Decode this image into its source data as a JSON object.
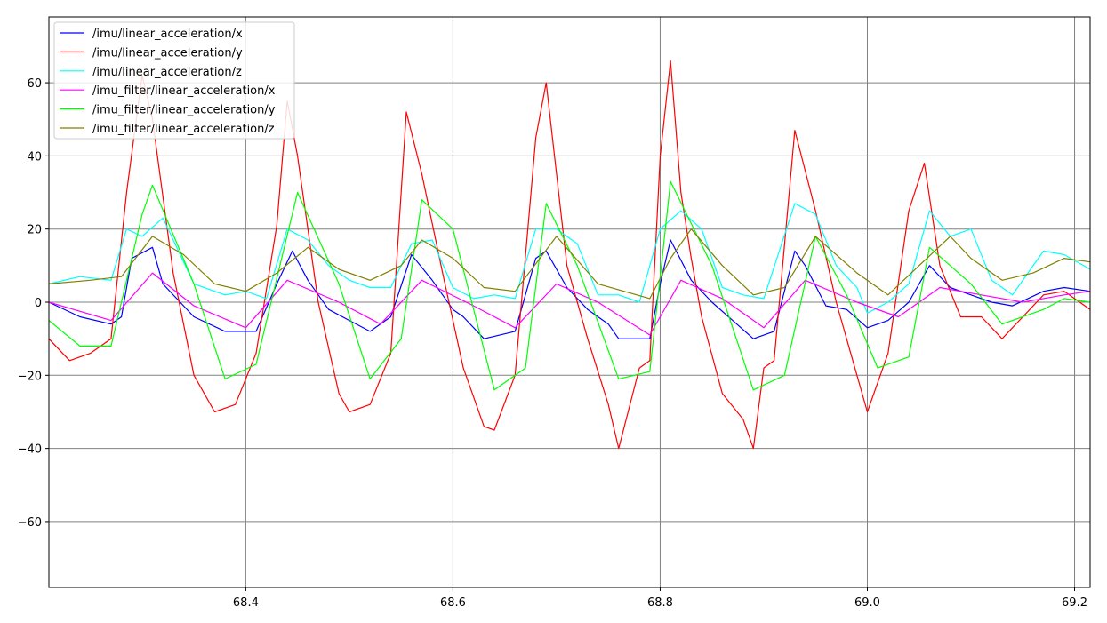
{
  "chart_data": {
    "type": "line",
    "title": "",
    "xlabel": "",
    "ylabel": "",
    "xlim": [
      68.21,
      69.215
    ],
    "ylim": [
      -78,
      78
    ],
    "grid": true,
    "legend_position": "top-left",
    "x_ticks": [
      68.4,
      68.6,
      68.8,
      69.0,
      69.2
    ],
    "x_tick_labels": [
      "68.4",
      "68.6",
      "68.8",
      "69.0",
      "69.2"
    ],
    "y_ticks": [
      60,
      40,
      20,
      0,
      -20,
      -40,
      -60
    ],
    "y_tick_labels": [
      "60",
      "40",
      "20",
      "0",
      "−20",
      "−40",
      "−60"
    ],
    "series": [
      {
        "name": "/imu/linear_acceleration/x",
        "color": "#0000ff",
        "x": [
          68.21,
          68.24,
          68.27,
          68.28,
          68.29,
          68.31,
          68.32,
          68.35,
          68.38,
          68.41,
          68.43,
          68.445,
          68.46,
          68.48,
          68.5,
          68.52,
          68.54,
          68.56,
          68.58,
          68.6,
          68.61,
          68.63,
          68.66,
          68.68,
          68.69,
          68.71,
          68.73,
          68.75,
          68.76,
          68.78,
          68.79,
          68.8,
          68.81,
          68.83,
          68.85,
          68.87,
          68.89,
          68.91,
          68.93,
          68.94,
          68.96,
          68.98,
          69.0,
          69.02,
          69.04,
          69.06,
          69.08,
          69.1,
          69.12,
          69.14,
          69.17,
          69.19,
          69.215
        ],
        "y": [
          0,
          -4,
          -6,
          -4,
          12,
          15,
          5,
          -4,
          -8,
          -8,
          5,
          14,
          6,
          -2,
          -5,
          -8,
          -4,
          13,
          6,
          -2,
          -4,
          -10,
          -8,
          12,
          14,
          4,
          -2,
          -6,
          -10,
          -10,
          -10,
          5,
          17,
          6,
          0,
          -5,
          -10,
          -8,
          14,
          10,
          -1,
          -2,
          -7,
          -5,
          0,
          10,
          4,
          2,
          0,
          -1,
          3,
          4,
          3
        ]
      },
      {
        "name": "/imu/linear_acceleration/y",
        "color": "#ff0000",
        "x": [
          68.21,
          68.23,
          68.25,
          68.27,
          68.285,
          68.3,
          68.31,
          68.33,
          68.35,
          68.37,
          68.39,
          68.41,
          68.43,
          68.44,
          68.45,
          68.47,
          68.49,
          68.5,
          68.52,
          68.54,
          68.555,
          68.57,
          68.59,
          68.61,
          68.63,
          68.64,
          68.66,
          68.68,
          68.69,
          68.71,
          68.73,
          68.75,
          68.76,
          68.78,
          68.79,
          68.8,
          68.81,
          68.82,
          68.83,
          68.84,
          68.86,
          68.88,
          68.89,
          68.9,
          68.91,
          68.93,
          68.95,
          68.97,
          68.99,
          69.0,
          69.02,
          69.04,
          69.055,
          69.07,
          69.09,
          69.11,
          69.13,
          69.15,
          69.17,
          69.19,
          69.215
        ],
        "y": [
          -10,
          -16,
          -14,
          -10,
          30,
          62,
          50,
          8,
          -20,
          -30,
          -28,
          -14,
          21,
          55,
          40,
          0,
          -25,
          -30,
          -28,
          -14,
          52,
          35,
          8,
          -18,
          -34,
          -35,
          -20,
          45,
          60,
          10,
          -10,
          -28,
          -40,
          -18,
          -16,
          40,
          66,
          30,
          12,
          -4,
          -25,
          -32,
          -40,
          -18,
          -16,
          47,
          25,
          0,
          -20,
          -30,
          -14,
          25,
          38,
          10,
          -4,
          -4,
          -10,
          -4,
          2,
          3,
          -2
        ]
      },
      {
        "name": "/imu/linear_acceleration/z",
        "color": "#00ffff",
        "x": [
          68.21,
          68.24,
          68.27,
          68.285,
          68.3,
          68.32,
          68.35,
          68.38,
          68.4,
          68.42,
          68.44,
          68.46,
          68.48,
          68.5,
          68.52,
          68.54,
          68.56,
          68.58,
          68.6,
          68.62,
          68.64,
          68.66,
          68.68,
          68.7,
          68.72,
          68.74,
          68.76,
          68.78,
          68.8,
          68.82,
          68.84,
          68.86,
          68.88,
          68.9,
          68.93,
          68.95,
          68.97,
          68.99,
          69.0,
          69.02,
          69.04,
          69.06,
          69.08,
          69.1,
          69.12,
          69.14,
          69.17,
          69.19,
          69.215
        ],
        "y": [
          5,
          7,
          6,
          20,
          18,
          23,
          5,
          2,
          3,
          1,
          20,
          17,
          10,
          6,
          4,
          4,
          16,
          17,
          4,
          1,
          2,
          1,
          20,
          20,
          16,
          2,
          2,
          0,
          20,
          25,
          20,
          4,
          2,
          1,
          27,
          24,
          10,
          4,
          -3,
          0,
          5,
          25,
          18,
          20,
          6,
          2,
          14,
          13,
          9
        ]
      },
      {
        "name": "/imu_filter/linear_acceleration/x",
        "color": "#ff00ff",
        "x": [
          68.21,
          68.27,
          68.31,
          68.35,
          68.4,
          68.44,
          68.49,
          68.53,
          68.57,
          68.62,
          68.66,
          68.7,
          68.74,
          68.79,
          68.82,
          68.86,
          68.9,
          68.94,
          68.99,
          69.03,
          69.07,
          69.11,
          69.15,
          69.19,
          69.215
        ],
        "y": [
          0,
          -5,
          8,
          -1,
          -7,
          6,
          0,
          -6,
          6,
          -1,
          -7,
          5,
          0,
          -9,
          6,
          1,
          -7,
          6,
          0,
          -4,
          4,
          2,
          0,
          2,
          3
        ]
      },
      {
        "name": "/imu_filter/linear_acceleration/y",
        "color": "#00ff00",
        "x": [
          68.21,
          68.24,
          68.27,
          68.3,
          68.31,
          68.35,
          68.38,
          68.41,
          68.45,
          68.49,
          68.52,
          68.55,
          68.57,
          68.6,
          68.64,
          68.67,
          68.69,
          68.72,
          68.76,
          68.79,
          68.81,
          68.85,
          68.89,
          68.92,
          68.95,
          68.98,
          69.01,
          69.04,
          69.06,
          69.1,
          69.13,
          69.17,
          69.19,
          69.215
        ],
        "y": [
          -5,
          -12,
          -12,
          24,
          32,
          5,
          -21,
          -17,
          30,
          5,
          -21,
          -10,
          28,
          20,
          -24,
          -18,
          27,
          10,
          -21,
          -19,
          33,
          10,
          -24,
          -20,
          18,
          2,
          -18,
          -15,
          15,
          5,
          -6,
          -2,
          1,
          0
        ]
      },
      {
        "name": "/imu_filter/linear_acceleration/z",
        "color": "#808000",
        "x": [
          68.21,
          68.25,
          68.28,
          68.31,
          68.34,
          68.37,
          68.4,
          68.43,
          68.46,
          68.49,
          68.52,
          68.55,
          68.57,
          68.6,
          68.63,
          68.66,
          68.7,
          68.74,
          68.79,
          68.81,
          68.83,
          68.86,
          68.89,
          68.92,
          68.95,
          68.99,
          69.02,
          69.05,
          69.08,
          69.1,
          69.13,
          69.16,
          69.19,
          69.215
        ],
        "y": [
          5,
          6,
          7,
          18,
          13,
          5,
          3,
          8,
          15,
          9,
          6,
          10,
          17,
          12,
          4,
          3,
          18,
          5,
          1,
          12,
          20,
          10,
          2,
          4,
          18,
          8,
          2,
          10,
          18,
          12,
          6,
          8,
          12,
          11
        ]
      }
    ]
  }
}
